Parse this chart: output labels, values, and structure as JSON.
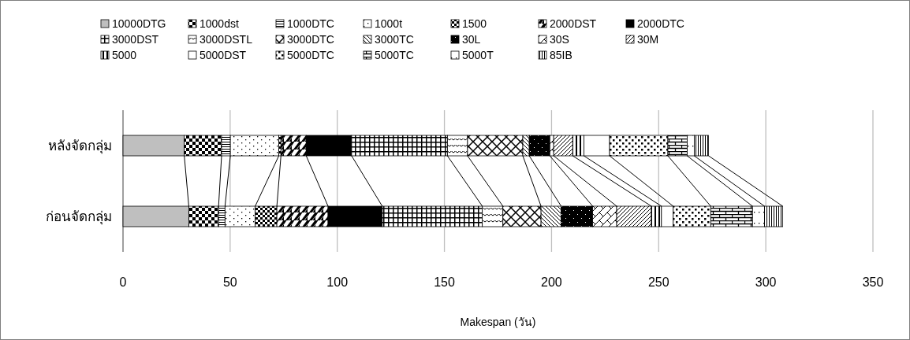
{
  "chart_data": {
    "type": "bar",
    "orientation": "horizontal",
    "stacked": true,
    "xlabel": "Makespan (วัน)",
    "categories": [
      "หลังจัดกลุ่ม",
      "ก่อนจัดกลุ่ม"
    ],
    "xlim": [
      0,
      350
    ],
    "xticks": [
      0,
      50,
      100,
      150,
      200,
      250,
      300,
      350
    ],
    "grid": "x",
    "legend": "top",
    "series": [
      {
        "name": "10000DTG",
        "color": "#bfbfbf",
        "values": [
          28.6,
          30.7
        ]
      },
      {
        "name": "1000dst",
        "color": "#000000",
        "values": [
          17.4,
          13.9
        ]
      },
      {
        "name": "1000DTC",
        "color": "#000000",
        "values": [
          4.1,
          3.0
        ]
      },
      {
        "name": "1000t",
        "color": "#000000",
        "values": [
          22.6,
          14.1
        ]
      },
      {
        "name": "1500",
        "color": "#000000",
        "values": [
          1.0,
          10.1
        ]
      },
      {
        "name": "2000DST",
        "color": "#000000",
        "values": [
          11.8,
          23.9
        ]
      },
      {
        "name": "2000DTC",
        "color": "#000000",
        "values": [
          21.2,
          25.3
        ]
      },
      {
        "name": "3000DST",
        "color": "#000000",
        "values": [
          44.7,
          46.7
        ]
      },
      {
        "name": "3000DSTL",
        "color": "#000000",
        "values": [
          9.4,
          9.6
        ]
      },
      {
        "name": "3000DTC",
        "color": "#000000",
        "values": [
          25.8,
          17.8
        ]
      },
      {
        "name": "3000TC",
        "color": "#000000",
        "values": [
          3.0,
          9.4
        ]
      },
      {
        "name": "30L",
        "color": "#000000",
        "values": [
          9.6,
          14.7
        ]
      },
      {
        "name": "30S",
        "color": "#000000",
        "values": [
          1.8,
          11.2
        ]
      },
      {
        "name": "30M",
        "color": "#000000",
        "values": [
          8.9,
          16.2
        ]
      },
      {
        "name": "5000",
        "color": "#000000",
        "values": [
          5.2,
          4.7
        ]
      },
      {
        "name": "5000DST",
        "color": "#ffffff",
        "values": [
          12.0,
          5.5
        ]
      },
      {
        "name": "5000DTC",
        "color": "#000000",
        "values": [
          27.2,
          17.5
        ]
      },
      {
        "name": "5000TC",
        "color": "#000000",
        "values": [
          9.0,
          19.5
        ]
      },
      {
        "name": "5000T",
        "color": "#000000",
        "values": [
          3.3,
          5.6
        ]
      },
      {
        "name": "85IB",
        "color": "#000000",
        "values": [
          6.7,
          8.5
        ]
      }
    ]
  }
}
